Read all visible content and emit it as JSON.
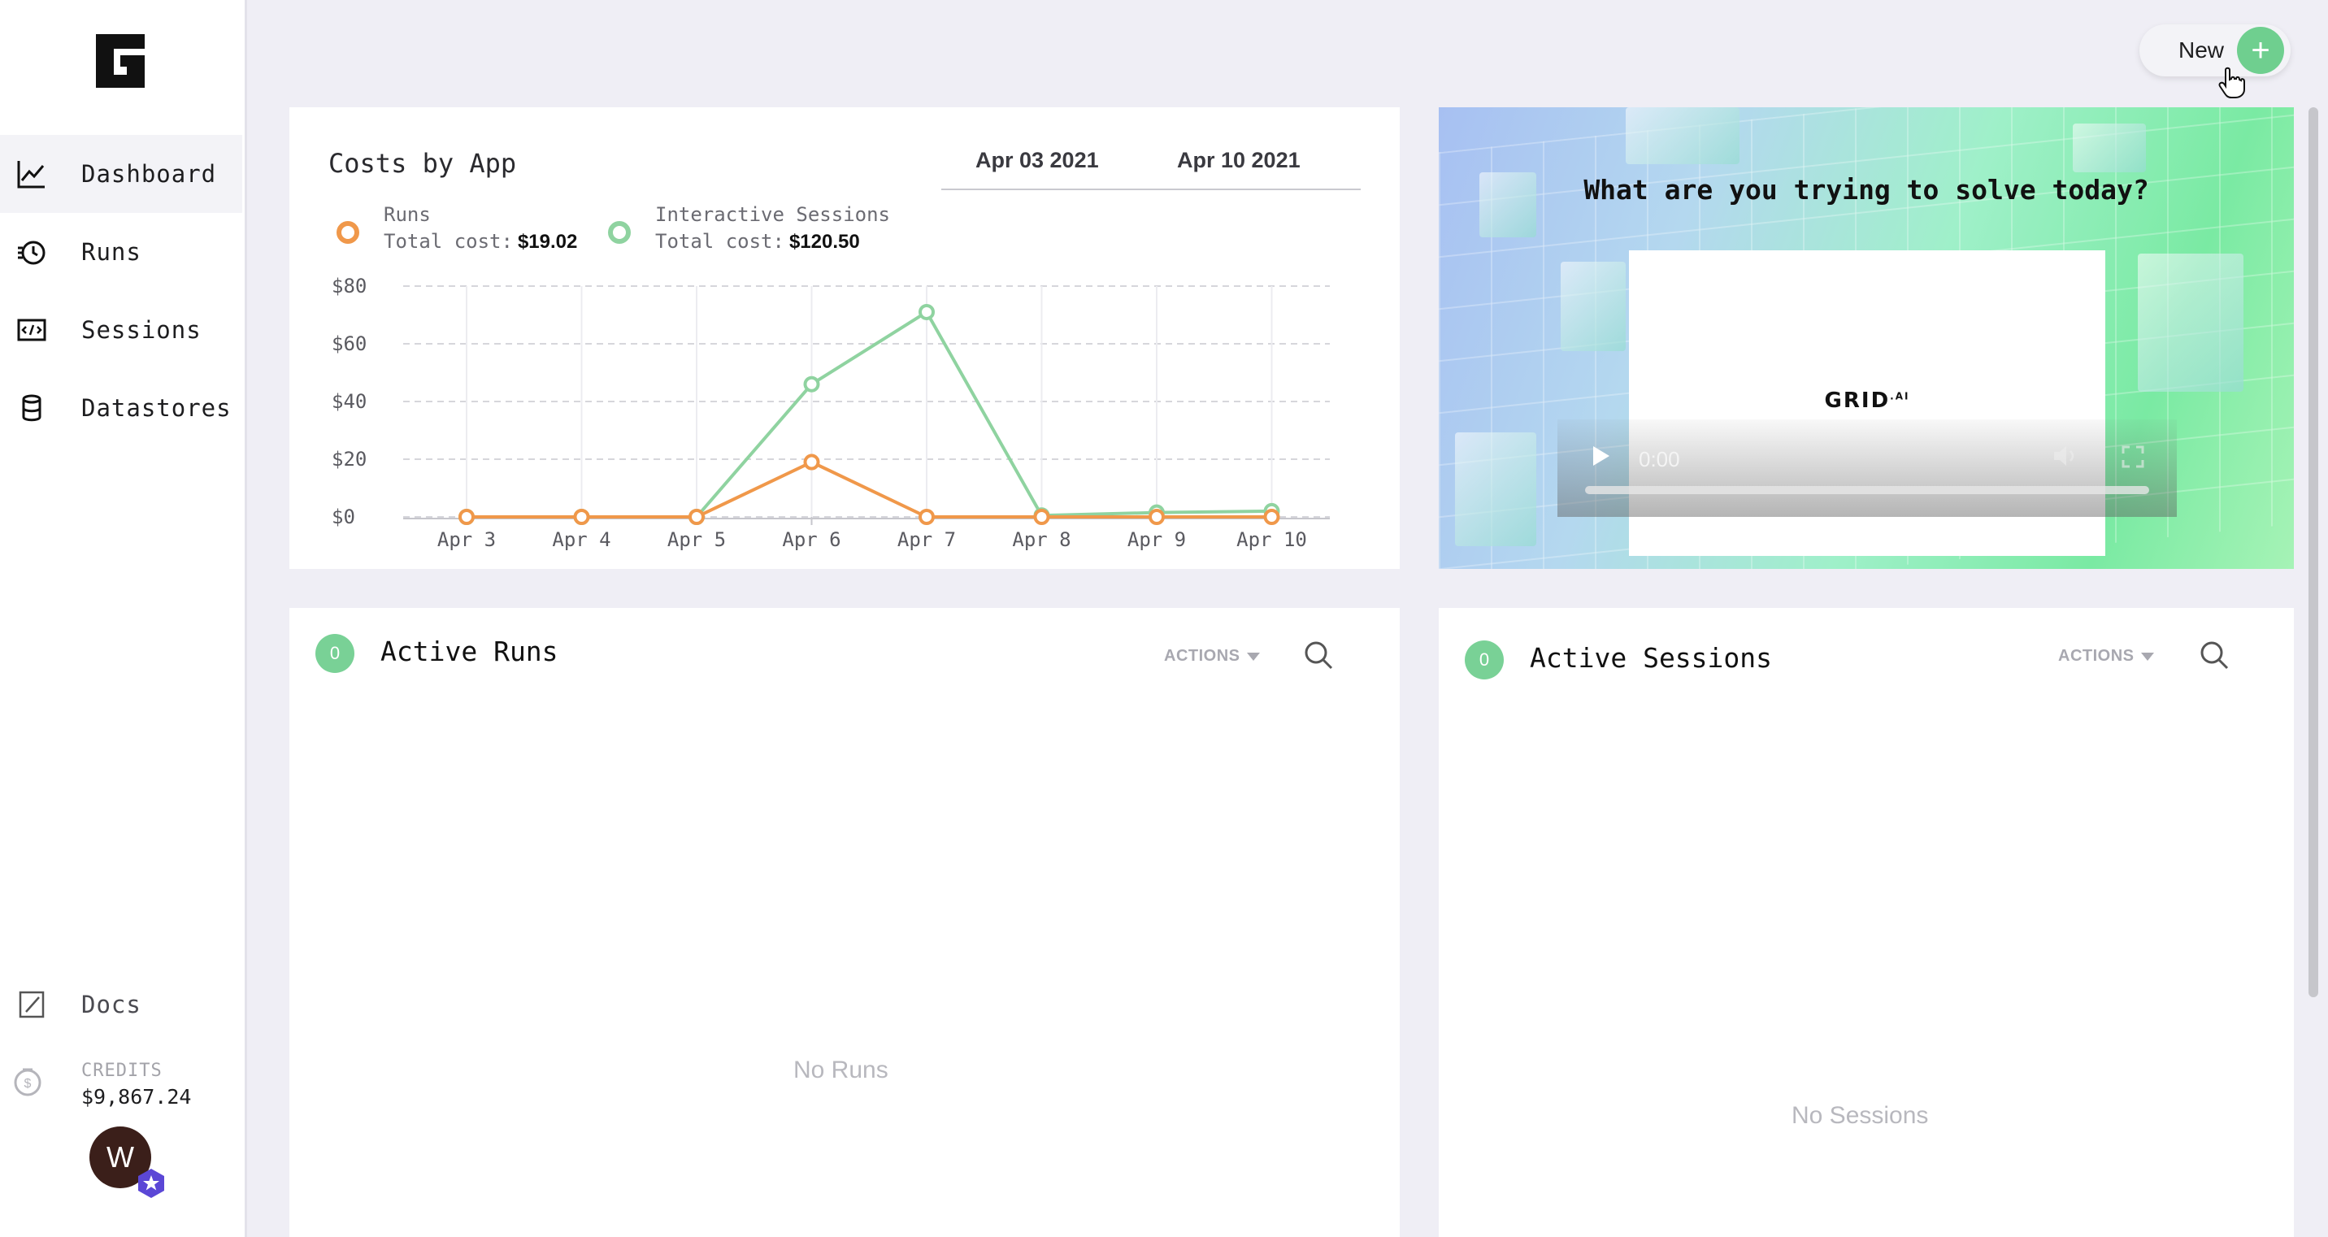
{
  "sidebar": {
    "nav": [
      {
        "label": "Dashboard",
        "icon": "chart-line-icon",
        "active": true
      },
      {
        "label": "Runs",
        "icon": "runs-icon",
        "active": false
      },
      {
        "label": "Sessions",
        "icon": "code-window-icon",
        "active": false
      },
      {
        "label": "Datastores",
        "icon": "database-icon",
        "active": false
      }
    ],
    "docs_label": "Docs",
    "credits_label": "CREDITS",
    "credits_value": "$9,867.24",
    "avatar_initial": "W"
  },
  "header": {
    "new_label": "New",
    "new_icon": "plus-icon"
  },
  "costs": {
    "title": "Costs by App",
    "date_start": "Apr 03 2021",
    "date_end": "Apr 10 2021",
    "legend": [
      {
        "name": "Runs",
        "cost_label": "Total cost:",
        "cost": "$19.02",
        "color": "#f0984a"
      },
      {
        "name": "Interactive Sessions",
        "cost_label": "Total cost:",
        "cost": "$120.50",
        "color": "#8fd3a0"
      }
    ]
  },
  "chart_data": {
    "type": "line",
    "title": "Costs by App",
    "categories": [
      "Apr 3",
      "Apr 4",
      "Apr 5",
      "Apr 6",
      "Apr 7",
      "Apr 8",
      "Apr 9",
      "Apr 10"
    ],
    "y_tick_labels": [
      "$0",
      "$20",
      "$40",
      "$60",
      "$80"
    ],
    "ylim": [
      0,
      80
    ],
    "grid": true,
    "series": [
      {
        "name": "Runs",
        "values": [
          0,
          0,
          0,
          19,
          0,
          0,
          0,
          0
        ],
        "color": "#f0984a"
      },
      {
        "name": "Interactive Sessions",
        "values": [
          0,
          0,
          0,
          46,
          71,
          0.5,
          1.5,
          2
        ],
        "color": "#8fd3a0"
      }
    ]
  },
  "promo": {
    "title": "What are you trying to solve today?",
    "video_logo": "GRID",
    "video_logo_sup": ".AI",
    "video_time": "0:00"
  },
  "active_runs": {
    "count": "0",
    "title": "Active Runs",
    "actions_label": "ACTIONS",
    "empty": "No Runs"
  },
  "active_sessions": {
    "count": "0",
    "title": "Active Sessions",
    "actions_label": "ACTIONS",
    "empty": "No Sessions"
  }
}
